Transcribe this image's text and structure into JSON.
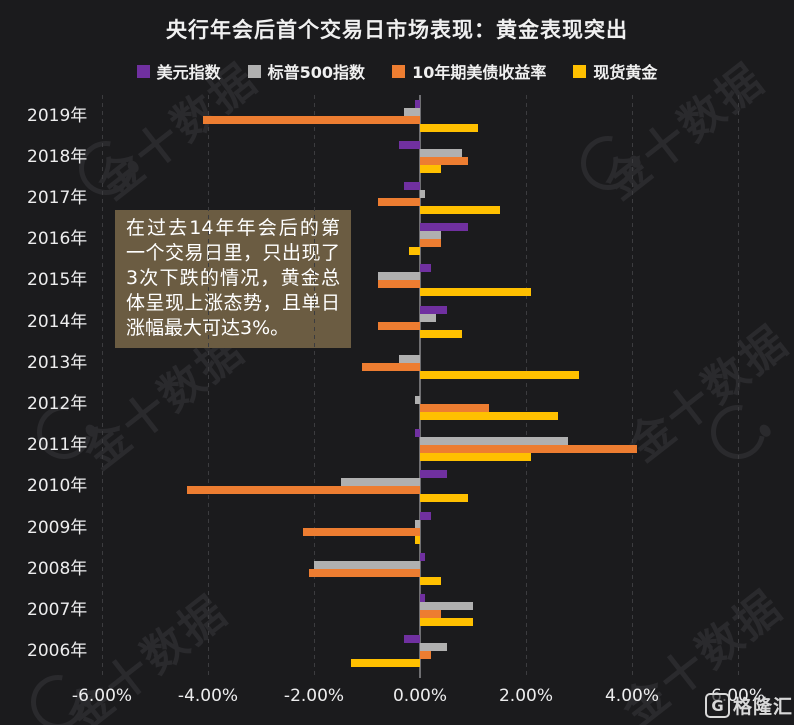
{
  "title": "央行年会后首个交易日市场表现：黄金表现突出",
  "watermark_text": "金十数据",
  "brand": {
    "icon_letter": "G",
    "name": "格隆汇"
  },
  "annotation": {
    "text": "在过去14年年会后的第一个交易日里，只出现了3次下跌的情况，黄金总体呈现上涨态势，且单日涨幅最大可达3%。",
    "bg_color": "#6b5c42"
  },
  "colors": {
    "background": "#1b1b1d",
    "gridline": "#3c3c3f",
    "zero_axis": "#6f6f72",
    "text": "#ededee",
    "watermark": "#2a2a2d"
  },
  "legend": [
    {
      "id": "usd-index",
      "label": "美元指数",
      "color": "#7030a0"
    },
    {
      "id": "sp500",
      "label": "标普500指数",
      "color": "#b0b0b0"
    },
    {
      "id": "ust10y-yield",
      "label": "10年期美债收益率",
      "color": "#ed7d31"
    },
    {
      "id": "spot-gold",
      "label": "现货黄金",
      "color": "#ffc000"
    }
  ],
  "chart_data": {
    "type": "bar",
    "orientation": "horizontal",
    "title": "央行年会后首个交易日市场表现：黄金表现突出",
    "unit": "percent",
    "grid": "dashed-vertical",
    "legend_position": "top",
    "xlim": [
      -6.5,
      7.0
    ],
    "x_ticks": [
      {
        "value": -6,
        "label": "-6.00%"
      },
      {
        "value": -4,
        "label": "-4.00%"
      },
      {
        "value": -2,
        "label": "-2.00%"
      },
      {
        "value": 0,
        "label": "0.00%"
      },
      {
        "value": 2,
        "label": "2.00%"
      },
      {
        "value": 4,
        "label": "4.00%"
      },
      {
        "value": 6,
        "label": "6.00%"
      }
    ],
    "categories": [
      "2019年",
      "2018年",
      "2017年",
      "2016年",
      "2015年",
      "2014年",
      "2013年",
      "2012年",
      "2011年",
      "2010年",
      "2009年",
      "2008年",
      "2007年",
      "2006年"
    ],
    "series": [
      {
        "id": "usd-index",
        "name": "美元指数",
        "color": "#7030a0",
        "values": [
          -0.1,
          -0.4,
          -0.3,
          0.9,
          0.2,
          0.5,
          0.0,
          0.0,
          -0.1,
          0.5,
          0.2,
          0.1,
          0.1,
          -0.3
        ]
      },
      {
        "id": "sp500",
        "name": "标普500指数",
        "color": "#b0b0b0",
        "values": [
          -0.3,
          0.8,
          0.1,
          0.4,
          -0.8,
          0.3,
          -0.4,
          -0.1,
          2.8,
          -1.5,
          -0.1,
          -2.0,
          1.0,
          0.5
        ]
      },
      {
        "id": "ust10y-yield",
        "name": "10年期美债收益率",
        "color": "#ed7d31",
        "values": [
          -4.1,
          0.9,
          -0.8,
          0.4,
          -0.8,
          -0.8,
          -1.1,
          1.3,
          4.1,
          -4.4,
          -2.2,
          -2.1,
          0.4,
          0.2
        ]
      },
      {
        "id": "spot-gold",
        "name": "现货黄金",
        "color": "#ffc000",
        "values": [
          1.1,
          0.4,
          1.5,
          -0.2,
          2.1,
          0.8,
          3.0,
          2.6,
          2.1,
          0.9,
          -0.1,
          0.4,
          1.0,
          -1.3
        ]
      }
    ]
  }
}
